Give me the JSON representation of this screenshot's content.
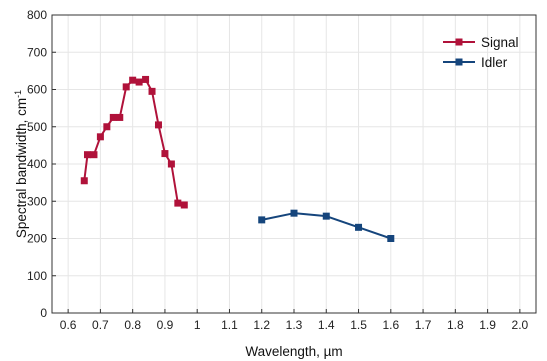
{
  "chart_data": {
    "type": "line",
    "xlabel": "Wavelength, µm",
    "ylabel": "Spectral bandwidth, cm",
    "ylabel_sup": "-1",
    "xlim": [
      0.55,
      2.05
    ],
    "ylim": [
      0,
      800
    ],
    "xticks": [
      "0.6",
      "0.7",
      "0.8",
      "0.9",
      "1",
      "1.1",
      "1.2",
      "1.3",
      "1.4",
      "1.5",
      "1.6",
      "1.7",
      "1.8",
      "1.9",
      "2.0"
    ],
    "yticks": [
      "0",
      "100",
      "200",
      "300",
      "400",
      "500",
      "600",
      "700",
      "800"
    ],
    "grid": true,
    "legend_position": "top-right",
    "series": [
      {
        "name": "Signal",
        "color": "#b0123a",
        "marker": "square",
        "x": [
          0.65,
          0.66,
          0.68,
          0.7,
          0.72,
          0.74,
          0.76,
          0.78,
          0.8,
          0.82,
          0.84,
          0.86,
          0.88,
          0.9,
          0.92,
          0.94,
          0.96
        ],
        "y": [
          355,
          425,
          425,
          473,
          500,
          525,
          525,
          607,
          625,
          620,
          627,
          595,
          505,
          428,
          400,
          295,
          290
        ]
      },
      {
        "name": "Idler",
        "color": "#15457c",
        "marker": "square",
        "x": [
          1.2,
          1.3,
          1.4,
          1.5,
          1.6
        ],
        "y": [
          250,
          268,
          260,
          230,
          200
        ]
      }
    ]
  }
}
